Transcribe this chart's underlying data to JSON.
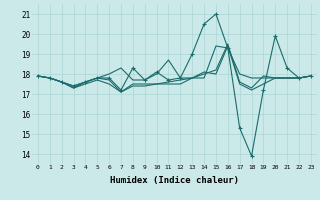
{
  "xlabel": "Humidex (Indice chaleur)",
  "ylabel": "",
  "background_color": "#cce9e9",
  "grid_color": "#aad4d4",
  "line_color": "#1a6b6b",
  "xlim": [
    -0.5,
    23.5
  ],
  "ylim": [
    13.5,
    21.5
  ],
  "yticks": [
    14,
    15,
    16,
    17,
    18,
    19,
    20,
    21
  ],
  "xticks": [
    0,
    1,
    2,
    3,
    4,
    5,
    6,
    7,
    8,
    9,
    10,
    11,
    12,
    13,
    14,
    15,
    16,
    17,
    18,
    19,
    20,
    21,
    22,
    23
  ],
  "xtick_labels": [
    "0",
    "1",
    "2",
    "3",
    "4",
    "5",
    "6",
    "7",
    "8",
    "9",
    "10",
    "11",
    "12",
    "13",
    "14",
    "15",
    "16",
    "17",
    "18",
    "19",
    "20",
    "21",
    "22",
    "23"
  ],
  "series": [
    {
      "x": [
        0,
        1,
        2,
        3,
        4,
        5,
        6,
        7,
        8,
        9,
        10,
        11,
        12,
        13,
        14,
        15,
        16,
        17,
        18,
        19,
        20,
        21,
        22,
        23
      ],
      "y": [
        17.9,
        17.8,
        17.6,
        17.3,
        17.6,
        17.8,
        17.7,
        17.1,
        17.5,
        17.5,
        17.5,
        17.5,
        17.5,
        17.8,
        18.1,
        18.0,
        19.4,
        17.5,
        17.2,
        17.5,
        17.8,
        17.8,
        17.8,
        17.9
      ],
      "has_markers": false
    },
    {
      "x": [
        0,
        1,
        2,
        3,
        4,
        5,
        6,
        7,
        8,
        9,
        10,
        11,
        12,
        13,
        14,
        15,
        16,
        17,
        18,
        19,
        20,
        21,
        22,
        23
      ],
      "y": [
        17.9,
        17.8,
        17.6,
        17.3,
        17.5,
        17.7,
        17.5,
        17.1,
        17.4,
        17.4,
        17.5,
        17.6,
        17.7,
        17.8,
        18.0,
        18.2,
        19.5,
        17.6,
        17.3,
        17.9,
        17.8,
        17.8,
        17.8,
        17.9
      ],
      "has_markers": false
    },
    {
      "x": [
        0,
        1,
        2,
        3,
        4,
        5,
        6,
        7,
        8,
        9,
        10,
        11,
        12,
        13,
        14,
        15,
        16,
        17,
        18,
        19,
        20,
        21,
        22,
        23
      ],
      "y": [
        17.9,
        17.8,
        17.6,
        17.4,
        17.6,
        17.8,
        17.8,
        17.2,
        18.3,
        17.7,
        18.1,
        17.7,
        17.8,
        19.0,
        20.5,
        21.0,
        19.3,
        15.3,
        13.9,
        17.2,
        19.9,
        18.3,
        17.8,
        17.9
      ],
      "has_markers": true
    },
    {
      "x": [
        0,
        1,
        2,
        3,
        4,
        5,
        6,
        7,
        8,
        9,
        10,
        11,
        12,
        13,
        14,
        15,
        16,
        17,
        18,
        19,
        20,
        21,
        22,
        23
      ],
      "y": [
        17.9,
        17.8,
        17.6,
        17.4,
        17.6,
        17.8,
        18.0,
        18.3,
        17.7,
        17.7,
        18.0,
        18.7,
        17.8,
        17.8,
        17.8,
        19.4,
        19.3,
        18.0,
        17.8,
        17.8,
        17.8,
        17.8,
        17.8,
        17.9
      ],
      "has_markers": false
    }
  ]
}
